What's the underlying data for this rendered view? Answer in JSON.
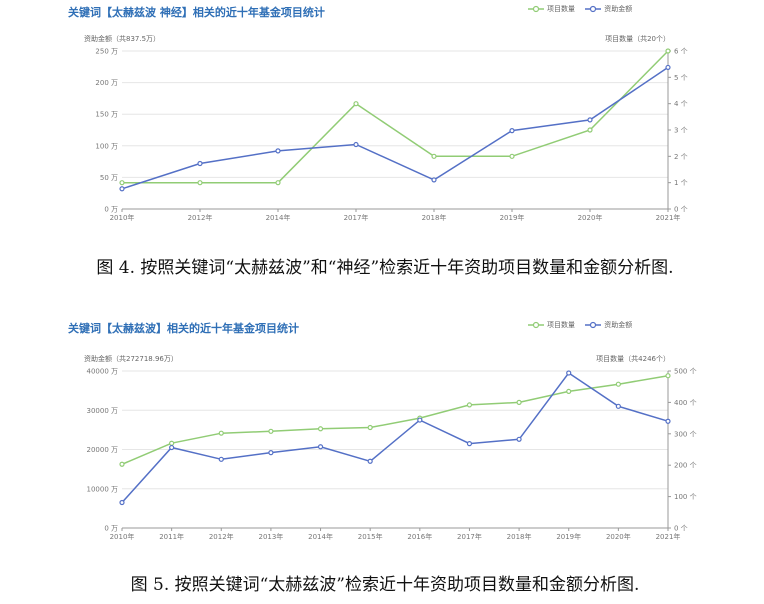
{
  "chart_data": [
    {
      "type": "line",
      "title": "关键词【太赫兹波 神经】相关的近十年基金项目统计",
      "left_axis_label": "资助金额（共837.5万）",
      "right_axis_label": "项目数量（共20个）",
      "categories": [
        "2010年",
        "2012年",
        "2014年",
        "2017年",
        "2018年",
        "2019年",
        "2020年",
        "2021年"
      ],
      "left_ticks": [
        "0 万",
        "50 万",
        "100 万",
        "150 万",
        "200 万",
        "250 万"
      ],
      "right_ticks": [
        "0 个",
        "1 个",
        "2 个",
        "3 个",
        "4 个",
        "5 个",
        "6 个"
      ],
      "y_left_lim": [
        0,
        250
      ],
      "y_right_lim": [
        0,
        6
      ],
      "series": [
        {
          "name": "项目数量",
          "axis": "right",
          "color": "#91cc75",
          "values": [
            1,
            1,
            1,
            4,
            2,
            2,
            3,
            6
          ]
        },
        {
          "name": "资助金额",
          "axis": "left",
          "color": "#5470c6",
          "values": [
            32,
            72,
            92,
            102,
            46,
            124,
            141,
            224
          ]
        }
      ],
      "grid": true,
      "legend_position": "top-right"
    },
    {
      "type": "line",
      "title": "关键词【太赫兹波】相关的近十年基金项目统计",
      "left_axis_label": "资助金额（共272718.96万）",
      "right_axis_label": "项目数量（共4246个）",
      "categories": [
        "2010年",
        "2011年",
        "2012年",
        "2013年",
        "2014年",
        "2015年",
        "2016年",
        "2017年",
        "2018年",
        "2019年",
        "2020年",
        "2021年"
      ],
      "left_ticks": [
        "0 万",
        "10000 万",
        "20000 万",
        "30000 万",
        "40000 万"
      ],
      "right_ticks": [
        "0 个",
        "100 个",
        "200 个",
        "300 个",
        "400 个",
        "500 个"
      ],
      "y_left_lim": [
        0,
        40000
      ],
      "y_right_lim": [
        0,
        500
      ],
      "series": [
        {
          "name": "项目数量",
          "axis": "right",
          "color": "#91cc75",
          "values": [
            203,
            270,
            302,
            308,
            316,
            320,
            350,
            392,
            400,
            435,
            458,
            485
          ]
        },
        {
          "name": "资助金额",
          "axis": "left",
          "color": "#5470c6",
          "values": [
            6500,
            20500,
            17500,
            19200,
            20700,
            17000,
            27500,
            21500,
            22600,
            39500,
            31000,
            27200
          ]
        }
      ],
      "grid": true,
      "legend_position": "top-right"
    }
  ],
  "captions": [
    "图 4. 按照关键词“太赫兹波”和“神经”检索近十年资助项目数量和金额分析图.",
    "图 5. 按照关键词“太赫兹波”检索近十年资助项目数量和金额分析图."
  ]
}
